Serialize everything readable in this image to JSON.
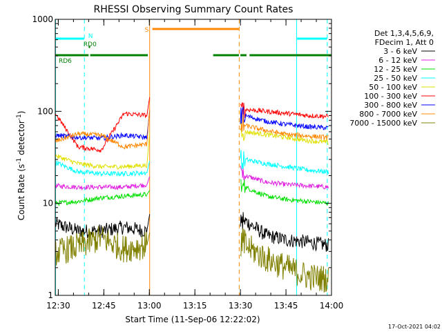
{
  "chart_data": {
    "type": "line",
    "title": "RHESSI Observing Summary Count Rates",
    "xlabel": "Start Time (11-Sep-06 12:22:02)",
    "ylabel_main": "Count Rate (s",
    "ylabel_sup1": "-1",
    "ylabel_mid": " detector",
    "ylabel_sup2": "-1",
    "ylabel_end": ")",
    "footer": "17-Oct-2021 04:02",
    "yscale": "log",
    "ylim": [
      1,
      1000
    ],
    "xlim_minutes": [
      749,
      840
    ],
    "xticks": [
      {
        "label": "12:30",
        "t": 750
      },
      {
        "label": "12:45",
        "t": 765
      },
      {
        "label": "13:00",
        "t": 780
      },
      {
        "label": "13:15",
        "t": 795
      },
      {
        "label": "13:30",
        "t": 810
      },
      {
        "label": "13:45",
        "t": 825
      },
      {
        "label": "14:00",
        "t": 840
      }
    ],
    "yticks": [
      {
        "label": "1",
        "v": 1
      },
      {
        "label": "10",
        "v": 10
      },
      {
        "label": "100",
        "v": 100
      },
      {
        "label": "1000",
        "v": 1000
      }
    ],
    "legend": {
      "header": [
        "Det 1,3,4,5,6,9,",
        "FDecim 1, Att 0"
      ],
      "placement": "right"
    },
    "series": [
      {
        "name": "3 - 6 keV",
        "color": "#000000",
        "seg1": [
          6.0,
          5.0,
          5.0,
          5.5,
          5.0
        ],
        "seg2": [
          6.5,
          4.5,
          4.0,
          3.8,
          3.5
        ],
        "peak": 8.0
      },
      {
        "name": "6 - 12 keV",
        "color": "#e020e0",
        "seg1": [
          15.5,
          15.0,
          15.0,
          15.0,
          16.0
        ],
        "seg2": [
          20.0,
          17.0,
          16.0,
          15.5,
          15.0
        ],
        "peak": 20.0
      },
      {
        "name": "12 - 25 keV",
        "color": "#00e000",
        "seg1": [
          10.0,
          10.5,
          11.5,
          12.0,
          12.5
        ],
        "seg2": [
          15.0,
          12.0,
          11.0,
          10.5,
          10.0
        ],
        "peak": 14.0
      },
      {
        "name": "25 - 50 keV",
        "color": "#00ffff",
        "seg1": [
          28.0,
          22.0,
          21.0,
          21.0,
          21.5
        ],
        "seg2": [
          30.0,
          27.0,
          25.0,
          23.0,
          22.0
        ],
        "peak": 30.0
      },
      {
        "name": "50 - 100 keV",
        "color": "#e0e000",
        "seg1": [
          33.0,
          27.0,
          25.0,
          25.0,
          26.0
        ],
        "seg2": [
          60.0,
          56.0,
          52.0,
          48.0,
          46.0
        ],
        "peak": 65.0
      },
      {
        "name": "100 - 300 keV",
        "color": "#ff0000",
        "seg1": [
          95.0,
          41.0,
          38.0,
          95.0,
          90.0
        ],
        "seg2": [
          105.0,
          100.0,
          95.0,
          90.0,
          88.0
        ],
        "peak": 150.0
      },
      {
        "name": "300 - 800 keV",
        "color": "#0000ff",
        "seg1": [
          55.0,
          52.0,
          51.0,
          55.0,
          52.0
        ],
        "seg2": [
          90.0,
          78.0,
          72.0,
          68.0,
          66.0
        ],
        "peak": 110.0
      },
      {
        "name": "800 - 7000 keV",
        "color": "#ff8800",
        "seg1": [
          47.0,
          57.0,
          55.0,
          41.0,
          44.0
        ],
        "seg2": [
          70.0,
          62.0,
          56.0,
          54.0,
          52.0
        ],
        "peak": 120.0
      },
      {
        "name": "7000 - 15000 keV",
        "color": "#808000",
        "seg1": [
          2.9,
          3.4,
          4.2,
          3.2,
          3.5
        ],
        "seg2": [
          3.5,
          2.5,
          2.0,
          1.6,
          1.5
        ],
        "peak": 5.0
      }
    ],
    "data_gap_minutes": [
      780.2,
      809.5
    ],
    "second_segment_start_minutes": 811.5,
    "flags": [
      {
        "label": "RD6",
        "color": "#008000",
        "level": 0.87,
        "spans": [
          [
            749,
            760
          ],
          [
            760.5,
            779.5
          ],
          [
            801,
            809.5
          ],
          [
            810,
            812
          ],
          [
            813,
            840
          ]
        ]
      },
      {
        "label": "RD0",
        "color": "#008000",
        "level": 0.9,
        "spans": [
          [
            760,
            760.5
          ]
        ]
      },
      {
        "label": "N",
        "color": "#00ffff",
        "level": 0.93,
        "spans": [
          [
            749,
            758.5
          ],
          [
            828.5,
            838.5
          ]
        ]
      },
      {
        "label": "S",
        "color": "#ff8800",
        "level": 0.965,
        "spans": [
          [
            781,
            809.5
          ]
        ]
      }
    ],
    "vertical_markers": [
      {
        "t": 749.1,
        "color": "#00ffff",
        "style": "solid"
      },
      {
        "t": 758.6,
        "color": "#00ffff",
        "style": "dashed"
      },
      {
        "t": 780.1,
        "color": "#ff8800",
        "style": "solid"
      },
      {
        "t": 809.6,
        "color": "#ff8800",
        "style": "dashed"
      },
      {
        "t": 828.5,
        "color": "#00ffff",
        "style": "solid"
      },
      {
        "t": 838.6,
        "color": "#00ffff",
        "style": "dashed"
      }
    ],
    "grid": false
  }
}
